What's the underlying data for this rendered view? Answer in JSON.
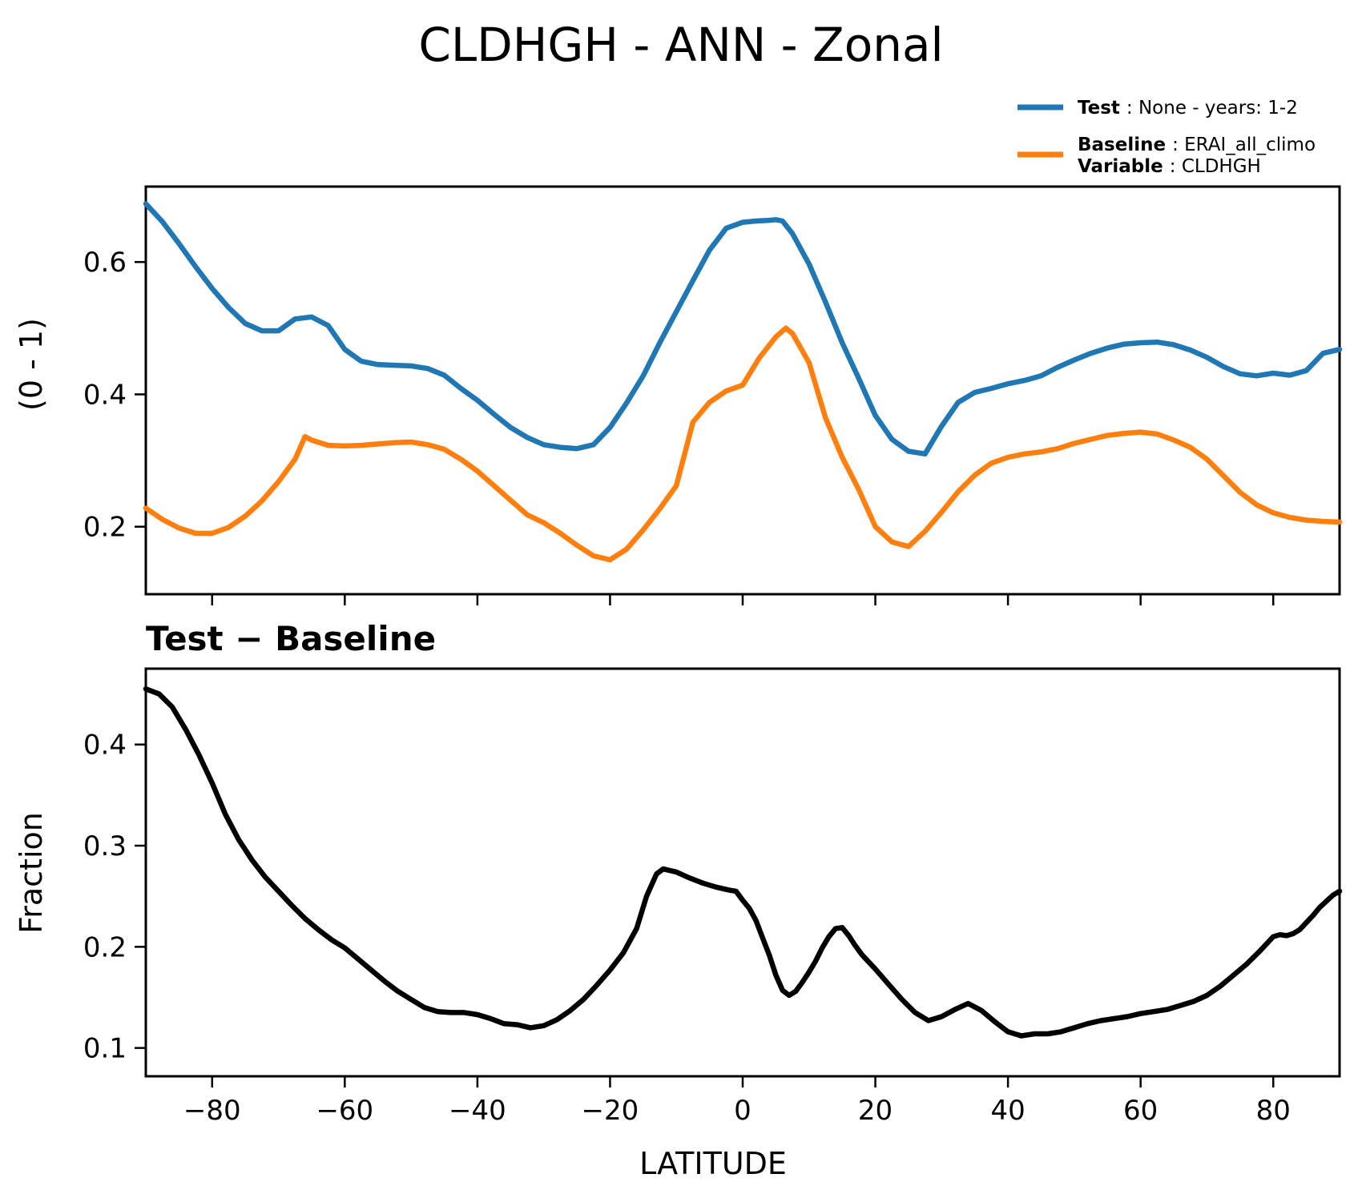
{
  "title": "CLDHGH - ANN - Zonal",
  "subtitle": "Test − Baseline",
  "legend": {
    "test": {
      "label": "Test",
      "rest": ": None - years: 1-2",
      "color": "#1f77b4"
    },
    "baseline": {
      "label": "Baseline",
      "rest": ": ERAI_all_climo",
      "color": "#ff7f0e"
    },
    "variable": {
      "label": "Variable",
      "rest": ": CLDHGH"
    }
  },
  "colors": {
    "test_line": "#1f77b4",
    "baseline_line": "#ff7f0e",
    "diff_line": "#000000",
    "axis": "#000000",
    "background": "#ffffff"
  },
  "chart_data": [
    {
      "type": "line",
      "title": "CLDHGH - ANN - Zonal",
      "xlabel": "",
      "ylabel": "(0 - 1)",
      "xlim": [
        -90,
        90
      ],
      "ylim": [
        0.098,
        0.714
      ],
      "xticks": [
        -80,
        -60,
        -40,
        -20,
        0,
        20,
        40,
        60,
        80
      ],
      "yticks": [
        0.2,
        0.4,
        0.6
      ],
      "grid": false,
      "legend_position": "upper right, outside axes",
      "series": [
        {
          "name": "Test : None - years: 1-2",
          "color": "#1f77b4",
          "x": [
            -90,
            -87.5,
            -85,
            -82.5,
            -80,
            -77.5,
            -75,
            -72.5,
            -70,
            -67.5,
            -65,
            -62.5,
            -60,
            -57.5,
            -55,
            -52.5,
            -50,
            -47.5,
            -45,
            -42.5,
            -40,
            -37.5,
            -35,
            -32.5,
            -30,
            -27.5,
            -25,
            -22.5,
            -20,
            -17.5,
            -15,
            -12.5,
            -10,
            -7.5,
            -5,
            -2.5,
            0,
            2,
            4,
            5,
            6,
            7.5,
            10,
            12.5,
            15,
            17.5,
            20,
            22.5,
            25,
            27.5,
            30,
            32.5,
            35,
            37.5,
            40,
            42.5,
            45,
            47.5,
            50,
            52.5,
            55,
            57.5,
            60,
            62.5,
            65,
            67.5,
            70,
            72.5,
            75,
            77.5,
            80,
            82.5,
            85,
            87.5,
            90
          ],
          "y": [
            0.688,
            0.661,
            0.628,
            0.593,
            0.56,
            0.531,
            0.507,
            0.496,
            0.496,
            0.514,
            0.517,
            0.504,
            0.468,
            0.45,
            0.445,
            0.444,
            0.443,
            0.439,
            0.429,
            0.409,
            0.391,
            0.37,
            0.35,
            0.335,
            0.324,
            0.32,
            0.318,
            0.324,
            0.35,
            0.387,
            0.428,
            0.478,
            0.525,
            0.572,
            0.618,
            0.651,
            0.66,
            0.662,
            0.663,
            0.664,
            0.662,
            0.643,
            0.597,
            0.539,
            0.478,
            0.424,
            0.368,
            0.332,
            0.314,
            0.31,
            0.352,
            0.388,
            0.403,
            0.409,
            0.416,
            0.421,
            0.428,
            0.441,
            0.452,
            0.462,
            0.47,
            0.476,
            0.478,
            0.479,
            0.475,
            0.467,
            0.456,
            0.442,
            0.431,
            0.428,
            0.432,
            0.429,
            0.436,
            0.462,
            0.468
          ]
        },
        {
          "name": "Baseline : ERAI_all_climo — Variable : CLDHGH",
          "color": "#ff7f0e",
          "x": [
            -90,
            -87.5,
            -85,
            -82.5,
            -80,
            -77.5,
            -75,
            -72.5,
            -70,
            -67.5,
            -66,
            -65,
            -62.5,
            -60,
            -57.5,
            -55,
            -52.5,
            -50,
            -47.5,
            -45,
            -42.5,
            -40,
            -37.5,
            -35,
            -32.5,
            -30,
            -27.5,
            -25,
            -22.5,
            -20,
            -17.5,
            -15,
            -12.5,
            -10,
            -7.5,
            -5,
            -2.5,
            0,
            2.5,
            5,
            6.5,
            7.5,
            10,
            12.5,
            15,
            17.5,
            20,
            22.5,
            25,
            27.5,
            30,
            32.5,
            35,
            37.5,
            40,
            42.5,
            45,
            47.5,
            50,
            52.5,
            55,
            57.5,
            60,
            62.5,
            65,
            67.5,
            70,
            72.5,
            75,
            77.5,
            80,
            82.5,
            85,
            87.5,
            90
          ],
          "y": [
            0.228,
            0.211,
            0.198,
            0.19,
            0.19,
            0.199,
            0.216,
            0.239,
            0.268,
            0.302,
            0.336,
            0.331,
            0.323,
            0.322,
            0.323,
            0.325,
            0.327,
            0.328,
            0.324,
            0.317,
            0.302,
            0.284,
            0.262,
            0.24,
            0.218,
            0.206,
            0.19,
            0.172,
            0.156,
            0.15,
            0.166,
            0.195,
            0.227,
            0.262,
            0.358,
            0.388,
            0.405,
            0.414,
            0.455,
            0.487,
            0.5,
            0.492,
            0.448,
            0.364,
            0.305,
            0.256,
            0.2,
            0.177,
            0.17,
            0.193,
            0.222,
            0.253,
            0.278,
            0.296,
            0.305,
            0.31,
            0.313,
            0.318,
            0.326,
            0.332,
            0.338,
            0.341,
            0.343,
            0.34,
            0.331,
            0.32,
            0.302,
            0.277,
            0.252,
            0.233,
            0.221,
            0.214,
            0.21,
            0.208,
            0.207
          ]
        }
      ]
    },
    {
      "type": "line",
      "title": "Test − Baseline",
      "xlabel": "LATITUDE",
      "ylabel": "Fraction",
      "xlim": [
        -90,
        90
      ],
      "ylim": [
        0.072,
        0.475
      ],
      "xticks": [
        -80,
        -60,
        -40,
        -20,
        0,
        20,
        40,
        60,
        80
      ],
      "yticks": [
        0.1,
        0.2,
        0.3,
        0.4
      ],
      "grid": false,
      "series": [
        {
          "name": "Test minus Baseline",
          "color": "#000000",
          "x": [
            -90,
            -88,
            -86,
            -84,
            -82,
            -80,
            -78,
            -76,
            -74,
            -72,
            -70,
            -68,
            -66,
            -64,
            -62,
            -60,
            -58,
            -56,
            -54,
            -52,
            -50,
            -48,
            -46,
            -44,
            -42,
            -40,
            -38,
            -36,
            -34,
            -32,
            -30,
            -28,
            -26,
            -24,
            -22,
            -20,
            -18,
            -16,
            -14.5,
            -13,
            -12,
            -10,
            -8,
            -6,
            -4,
            -2,
            -1,
            0,
            1,
            2,
            3,
            4,
            5,
            6,
            7,
            8,
            9,
            10,
            11,
            12,
            13,
            14,
            15,
            16,
            17,
            18,
            20,
            22,
            24,
            26,
            28,
            30,
            32,
            34,
            36,
            38,
            40,
            42,
            44,
            46,
            48,
            50,
            52,
            54,
            56,
            58,
            60,
            62,
            64,
            66,
            68,
            70,
            72,
            74,
            76,
            78,
            80,
            81,
            82,
            83,
            84,
            85,
            86,
            87,
            88,
            89,
            90
          ],
          "y": [
            0.455,
            0.45,
            0.437,
            0.415,
            0.39,
            0.362,
            0.331,
            0.306,
            0.286,
            0.269,
            0.255,
            0.241,
            0.228,
            0.217,
            0.207,
            0.199,
            0.188,
            0.177,
            0.166,
            0.156,
            0.148,
            0.14,
            0.136,
            0.135,
            0.135,
            0.133,
            0.129,
            0.124,
            0.123,
            0.12,
            0.122,
            0.128,
            0.137,
            0.148,
            0.162,
            0.177,
            0.194,
            0.218,
            0.25,
            0.272,
            0.277,
            0.274,
            0.268,
            0.263,
            0.259,
            0.256,
            0.255,
            0.246,
            0.238,
            0.226,
            0.209,
            0.192,
            0.172,
            0.157,
            0.152,
            0.156,
            0.165,
            0.175,
            0.186,
            0.199,
            0.21,
            0.218,
            0.219,
            0.211,
            0.201,
            0.192,
            0.178,
            0.163,
            0.148,
            0.135,
            0.127,
            0.131,
            0.138,
            0.144,
            0.137,
            0.126,
            0.116,
            0.112,
            0.114,
            0.114,
            0.116,
            0.12,
            0.124,
            0.127,
            0.129,
            0.131,
            0.134,
            0.136,
            0.138,
            0.142,
            0.146,
            0.152,
            0.161,
            0.172,
            0.183,
            0.196,
            0.21,
            0.212,
            0.211,
            0.213,
            0.217,
            0.224,
            0.231,
            0.239,
            0.245,
            0.251,
            0.255
          ]
        }
      ]
    }
  ]
}
